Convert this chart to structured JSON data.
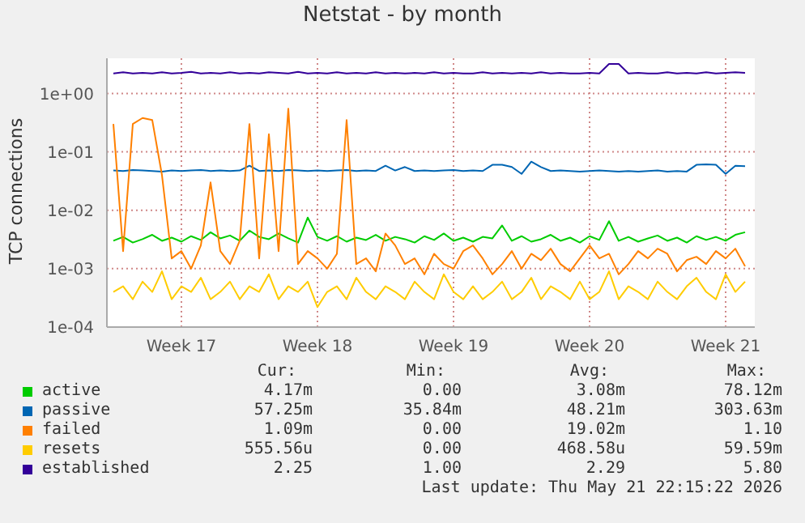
{
  "chart_data": {
    "type": "line",
    "title": "Netstat - by month",
    "ylabel": "TCP connections",
    "log": "y",
    "ylim": [
      0.0001,
      4
    ],
    "yticks": [
      {
        "value": 0.0001,
        "label": "1e-04"
      },
      {
        "value": 0.001,
        "label": "1e-03"
      },
      {
        "value": 0.01,
        "label": "1e-02"
      },
      {
        "value": 0.1,
        "label": "1e-01"
      },
      {
        "value": 1,
        "label": "1e+00"
      }
    ],
    "xlim": [
      "2026-04-19T16:00",
      "2026-05-23T00:00"
    ],
    "xticks": [
      {
        "value": "2026-04-23T12:00",
        "label": "Week 17"
      },
      {
        "value": "2026-04-30T12:00",
        "label": "Week 18"
      },
      {
        "value": "2026-05-07T12:00",
        "label": "Week 19"
      },
      {
        "value": "2026-05-14T12:00",
        "label": "Week 20"
      },
      {
        "value": "2026-05-21T12:00",
        "label": "Week 21"
      }
    ],
    "grid": true,
    "legend": "bottom",
    "marker": "none",
    "line_style": "solid",
    "x": [
      "2026-04-20T00:00",
      "2026-04-20T12:00",
      "2026-04-21T00:00",
      "2026-04-21T12:00",
      "2026-04-22T00:00",
      "2026-04-22T12:00",
      "2026-04-23T00:00",
      "2026-04-23T12:00",
      "2026-04-24T00:00",
      "2026-04-24T12:00",
      "2026-04-25T00:00",
      "2026-04-25T12:00",
      "2026-04-26T00:00",
      "2026-04-26T12:00",
      "2026-04-27T00:00",
      "2026-04-27T12:00",
      "2026-04-28T00:00",
      "2026-04-28T12:00",
      "2026-04-29T00:00",
      "2026-04-29T12:00",
      "2026-04-30T00:00",
      "2026-04-30T12:00",
      "2026-05-01T00:00",
      "2026-05-01T12:00",
      "2026-05-02T00:00",
      "2026-05-02T12:00",
      "2026-05-03T00:00",
      "2026-05-03T12:00",
      "2026-05-04T00:00",
      "2026-05-04T12:00",
      "2026-05-05T00:00",
      "2026-05-05T12:00",
      "2026-05-06T00:00",
      "2026-05-06T12:00",
      "2026-05-07T00:00",
      "2026-05-07T12:00",
      "2026-05-08T00:00",
      "2026-05-08T12:00",
      "2026-05-09T00:00",
      "2026-05-09T12:00",
      "2026-05-10T00:00",
      "2026-05-10T12:00",
      "2026-05-11T00:00",
      "2026-05-11T12:00",
      "2026-05-12T00:00",
      "2026-05-12T12:00",
      "2026-05-13T00:00",
      "2026-05-13T12:00",
      "2026-05-14T00:00",
      "2026-05-14T12:00",
      "2026-05-15T00:00",
      "2026-05-15T12:00",
      "2026-05-16T00:00",
      "2026-05-16T12:00",
      "2026-05-17T00:00",
      "2026-05-17T12:00",
      "2026-05-18T00:00",
      "2026-05-18T12:00",
      "2026-05-19T00:00",
      "2026-05-19T12:00",
      "2026-05-20T00:00",
      "2026-05-20T12:00",
      "2026-05-21T00:00",
      "2026-05-21T12:00",
      "2026-05-22T00:00",
      "2026-05-22T12:00"
    ],
    "series": [
      {
        "name": "active",
        "color": "#00cc00",
        "values": [
          0.003,
          0.0035,
          0.0028,
          0.0032,
          0.0038,
          0.003,
          0.0034,
          0.0029,
          0.0036,
          0.0031,
          0.0042,
          0.0033,
          0.0037,
          0.003,
          0.0045,
          0.0035,
          0.0032,
          0.004,
          0.0033,
          0.0028,
          0.0075,
          0.0035,
          0.003,
          0.0036,
          0.0029,
          0.0034,
          0.0031,
          0.0038,
          0.003,
          0.0035,
          0.0032,
          0.0028,
          0.0036,
          0.0031,
          0.004,
          0.003,
          0.0034,
          0.0029,
          0.0035,
          0.0033,
          0.0055,
          0.003,
          0.0036,
          0.0029,
          0.0032,
          0.0038,
          0.003,
          0.0034,
          0.0028,
          0.0036,
          0.0031,
          0.0065,
          0.003,
          0.0035,
          0.0029,
          0.0033,
          0.0037,
          0.003,
          0.0034,
          0.0028,
          0.0036,
          0.0031,
          0.0035,
          0.003,
          0.0038,
          0.0042
        ]
      },
      {
        "name": "passive",
        "color": "#0066b3",
        "values": [
          0.048,
          0.047,
          0.049,
          0.048,
          0.047,
          0.046,
          0.048,
          0.047,
          0.048,
          0.049,
          0.047,
          0.048,
          0.047,
          0.048,
          0.058,
          0.047,
          0.048,
          0.047,
          0.049,
          0.048,
          0.047,
          0.048,
          0.047,
          0.048,
          0.049,
          0.047,
          0.048,
          0.047,
          0.058,
          0.048,
          0.055,
          0.047,
          0.048,
          0.047,
          0.048,
          0.049,
          0.047,
          0.048,
          0.047,
          0.06,
          0.06,
          0.055,
          0.042,
          0.068,
          0.055,
          0.047,
          0.048,
          0.047,
          0.046,
          0.047,
          0.048,
          0.047,
          0.046,
          0.047,
          0.046,
          0.047,
          0.048,
          0.046,
          0.047,
          0.046,
          0.06,
          0.061,
          0.06,
          0.042,
          0.058,
          0.057
        ]
      },
      {
        "name": "failed",
        "color": "#ff8000",
        "values": [
          0.3,
          0.002,
          0.3,
          0.38,
          0.35,
          0.04,
          0.0015,
          0.002,
          0.001,
          0.0025,
          0.03,
          0.002,
          0.0012,
          0.003,
          0.3,
          0.0015,
          0.2,
          0.002,
          0.55,
          0.0012,
          0.002,
          0.0015,
          0.001,
          0.0018,
          0.35,
          0.0012,
          0.0015,
          0.0009,
          0.004,
          0.0025,
          0.0012,
          0.0015,
          0.0008,
          0.0018,
          0.0012,
          0.001,
          0.002,
          0.0025,
          0.0015,
          0.0008,
          0.0012,
          0.002,
          0.001,
          0.0018,
          0.0014,
          0.0022,
          0.0012,
          0.0009,
          0.0015,
          0.0025,
          0.0015,
          0.0018,
          0.0008,
          0.0012,
          0.002,
          0.0015,
          0.0022,
          0.0018,
          0.0009,
          0.0014,
          0.0016,
          0.0012,
          0.002,
          0.0015,
          0.0022,
          0.0011
        ]
      },
      {
        "name": "resets",
        "color": "#ffcc00",
        "values": [
          0.0004,
          0.0005,
          0.0003,
          0.0006,
          0.0004,
          0.0009,
          0.0003,
          0.0005,
          0.0004,
          0.0007,
          0.0003,
          0.0004,
          0.0006,
          0.0003,
          0.0005,
          0.0004,
          0.0008,
          0.0003,
          0.0005,
          0.0004,
          0.0006,
          0.00022,
          0.0004,
          0.0005,
          0.0003,
          0.0007,
          0.0004,
          0.0003,
          0.0005,
          0.0004,
          0.0003,
          0.0006,
          0.0004,
          0.0003,
          0.0008,
          0.0004,
          0.0003,
          0.0005,
          0.0003,
          0.0004,
          0.0006,
          0.0003,
          0.0004,
          0.0007,
          0.0003,
          0.0005,
          0.0004,
          0.0003,
          0.0006,
          0.0003,
          0.0004,
          0.0009,
          0.0003,
          0.0005,
          0.0004,
          0.0003,
          0.0006,
          0.0004,
          0.0003,
          0.0005,
          0.0007,
          0.0004,
          0.0003,
          0.0008,
          0.0004,
          0.0006
        ]
      },
      {
        "name": "established",
        "color": "#330099",
        "values": [
          2.2,
          2.3,
          2.2,
          2.25,
          2.2,
          2.3,
          2.2,
          2.25,
          2.35,
          2.2,
          2.25,
          2.2,
          2.3,
          2.2,
          2.25,
          2.2,
          2.3,
          2.25,
          2.2,
          2.35,
          2.2,
          2.25,
          2.2,
          2.3,
          2.2,
          2.25,
          2.2,
          2.3,
          2.2,
          2.25,
          2.2,
          2.25,
          2.2,
          2.3,
          2.2,
          2.25,
          2.2,
          2.2,
          2.3,
          2.2,
          2.25,
          2.2,
          2.25,
          2.2,
          2.3,
          2.2,
          2.25,
          2.2,
          2.2,
          2.25,
          2.2,
          3.2,
          3.2,
          2.2,
          2.25,
          2.2,
          2.2,
          2.3,
          2.2,
          2.25,
          2.2,
          2.3,
          2.2,
          2.25,
          2.3,
          2.25
        ]
      }
    ],
    "annotations": [
      "Cur:",
      "Min:",
      "Avg:",
      "Max:",
      "4.17m",
      "0.00",
      "3.08m",
      "78.12m",
      "57.25m",
      "35.84m",
      "48.21m",
      "303.63m",
      "1.09m",
      "0.00",
      "19.02m",
      "1.10",
      "555.56u",
      "0.00",
      "468.58u",
      "59.59m",
      "2.25",
      "1.00",
      "2.29",
      "5.80",
      "Last update: Thu May 21 22:15:22 2026"
    ]
  }
}
